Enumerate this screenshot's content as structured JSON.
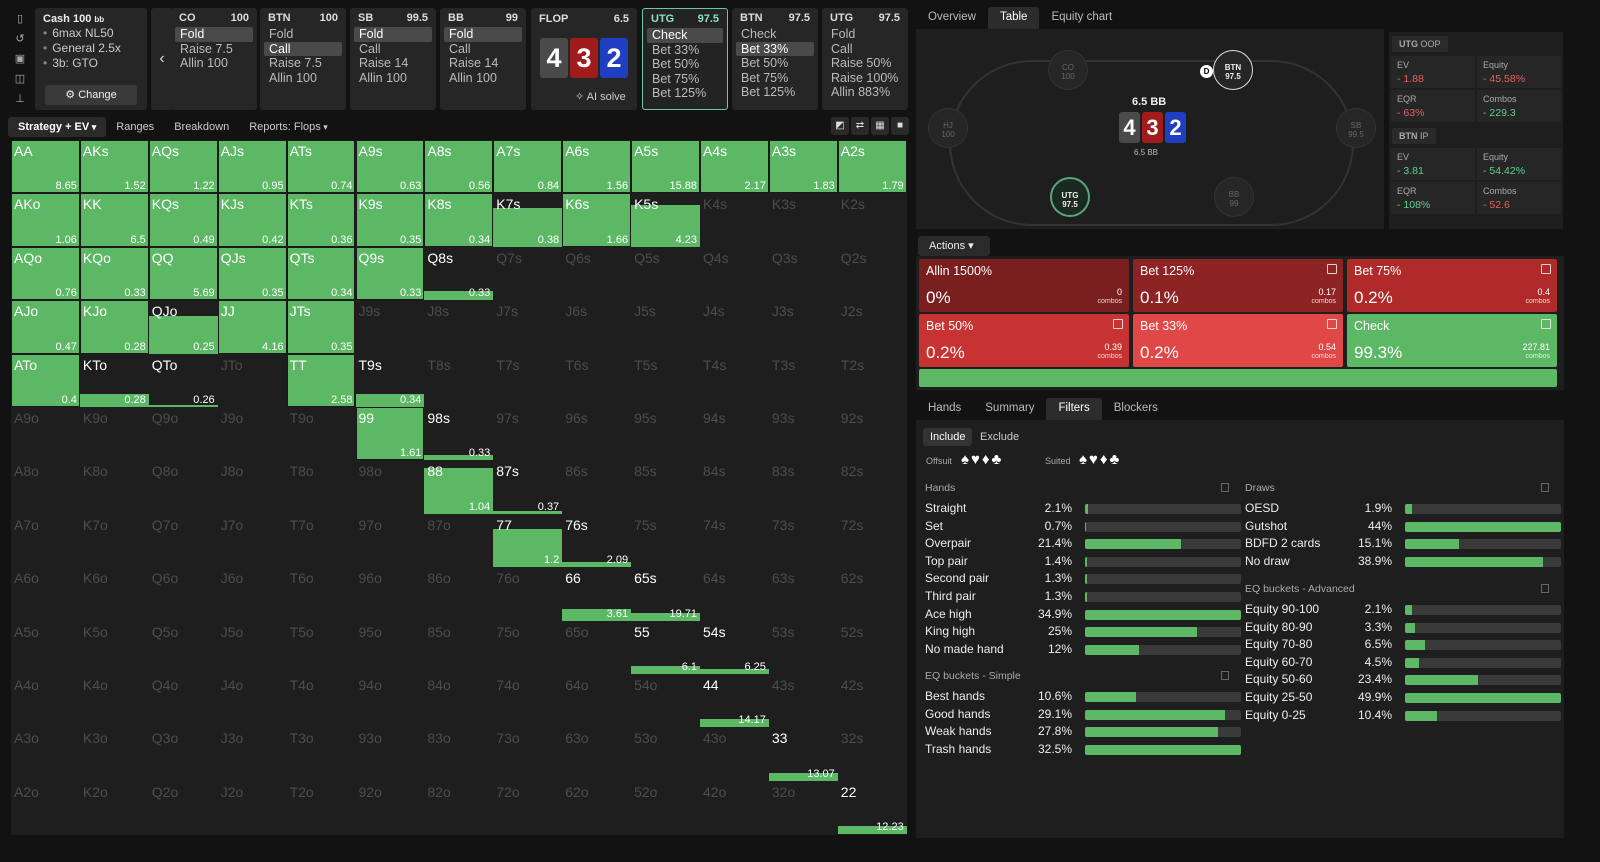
{
  "rail_icons": [
    "bookmark-icon",
    "history-icon",
    "save-icon",
    "gamepad-icon",
    "align-icon"
  ],
  "cash": {
    "title": "Cash 100",
    "unit": "bb",
    "lines": [
      "6max NL50",
      "General 2.5x",
      "3b: GTO"
    ],
    "change_label": "Change"
  },
  "nodes": [
    {
      "pos": "CO",
      "stack": "100",
      "options": [
        "Fold",
        "Raise 7.5",
        "Allin 100"
      ],
      "selected": 0
    },
    {
      "pos": "BTN",
      "stack": "100",
      "options": [
        "Fold",
        "Call",
        "Raise 7.5",
        "Allin 100"
      ],
      "selected": 1
    },
    {
      "pos": "SB",
      "stack": "99.5",
      "options": [
        "Fold",
        "Call",
        "Raise 14",
        "Allin 100"
      ],
      "selected": 0
    },
    {
      "pos": "BB",
      "stack": "99",
      "options": [
        "Fold",
        "Call",
        "Raise 14",
        "Allin 100"
      ],
      "selected": 0
    }
  ],
  "flop": {
    "label": "FLOP",
    "pot": "6.5",
    "cards": [
      {
        "rank": "4",
        "color": "#4a4a4a"
      },
      {
        "rank": "3",
        "color": "#a01c1c"
      },
      {
        "rank": "2",
        "color": "#1f3ec2"
      }
    ],
    "ai_label": "AI solve"
  },
  "nodes2": [
    {
      "pos": "UTG",
      "stack": "97.5",
      "options": [
        "Check",
        "Bet 33%",
        "Bet 50%",
        "Bet 75%",
        "Bet 125%"
      ],
      "selected": 0,
      "active": true
    },
    {
      "pos": "BTN",
      "stack": "97.5",
      "options": [
        "Check",
        "Bet 33%",
        "Bet 50%",
        "Bet 75%",
        "Bet 125%"
      ],
      "selected": 1
    },
    {
      "pos": "UTG",
      "stack": "97.5",
      "options": [
        "Fold",
        "Call",
        "Raise 50%",
        "Raise 100%",
        "Allin 883%"
      ],
      "selected": -1
    }
  ],
  "right_tabs": [
    "Overview",
    "Table",
    "Equity chart"
  ],
  "table": {
    "seats": [
      {
        "name": "CO",
        "stack": "100"
      },
      {
        "name": "BTN",
        "stack": "97.5"
      },
      {
        "name": "HJ",
        "stack": "100"
      },
      {
        "name": "SB",
        "stack": "99.5"
      },
      {
        "name": "UTG",
        "stack": "97.5"
      },
      {
        "name": "BB",
        "stack": "99"
      }
    ],
    "pot": "6.5 BB",
    "pot_small": "6.5 BB",
    "dealer": "D",
    "cards": [
      {
        "rank": "4",
        "color": "#4a4a4a"
      },
      {
        "rank": "3",
        "color": "#a01c1c"
      },
      {
        "rank": "2",
        "color": "#1f3ec2"
      }
    ]
  },
  "stats": [
    {
      "header": "UTG",
      "tag": "OOP",
      "items": [
        {
          "label": "EV",
          "value": "- 1.88",
          "cls": "neg"
        },
        {
          "label": "Equity",
          "value": "- 45.58%",
          "cls": "neg"
        },
        {
          "label": "EQR",
          "value": "- 63%",
          "cls": "neg"
        },
        {
          "label": "Combos",
          "value": "- 229.3",
          "cls": "pos"
        }
      ]
    },
    {
      "header": "BTN",
      "tag": "IP",
      "items": [
        {
          "label": "EV",
          "value": "- 3.81",
          "cls": "pos"
        },
        {
          "label": "Equity",
          "value": "- 54.42%",
          "cls": "pos"
        },
        {
          "label": "EQR",
          "value": "- 108%",
          "cls": "pos"
        },
        {
          "label": "Combos",
          "value": "- 52.6",
          "cls": "neg"
        }
      ]
    }
  ],
  "actions_label": "Actions",
  "actions": [
    {
      "name": "Allin 1500%",
      "pct": "0%",
      "combos": "0",
      "color": "#7a1f1f"
    },
    {
      "name": "Bet 125%",
      "pct": "0.1%",
      "combos": "0.17",
      "color": "#8e2323"
    },
    {
      "name": "Bet 75%",
      "pct": "0.2%",
      "combos": "0.4",
      "color": "#b02a2a"
    },
    {
      "name": "Bet 50%",
      "pct": "0.2%",
      "combos": "0.39",
      "color": "#c73333"
    },
    {
      "name": "Bet 33%",
      "pct": "0.2%",
      "combos": "0.54",
      "color": "#e04848"
    },
    {
      "name": "Check",
      "pct": "99.3%",
      "combos": "227.81",
      "color": "#5cb865"
    }
  ],
  "combos_word": "combos",
  "bottom_tabs": [
    "Hands",
    "Summary",
    "Filters",
    "Blockers"
  ],
  "filters": {
    "include": "Include",
    "exclude": "Exclude",
    "offsuit": "Offsuit",
    "suited": "Suited",
    "suit_glyphs": "♠♥♦♣",
    "suited_glyphs": "♠♥♦♣",
    "hands_title": "Hands",
    "hands": [
      {
        "name": "Straight",
        "pct": "2.1%",
        "v": 0.021
      },
      {
        "name": "Set",
        "pct": "0.7%",
        "v": 0.007
      },
      {
        "name": "Overpair",
        "pct": "21.4%",
        "v": 0.614
      },
      {
        "name": "Top pair",
        "pct": "1.4%",
        "v": 0.014
      },
      {
        "name": "Second pair",
        "pct": "1.3%",
        "v": 0.013
      },
      {
        "name": "Third pair",
        "pct": "1.3%",
        "v": 0.013
      },
      {
        "name": "Ace high",
        "pct": "34.9%",
        "v": 1.0
      },
      {
        "name": "King high",
        "pct": "25%",
        "v": 0.716
      },
      {
        "name": "No made hand",
        "pct": "12%",
        "v": 0.344
      }
    ],
    "eqs_title": "EQ buckets - Simple",
    "eqs": [
      {
        "name": "Best hands",
        "pct": "10.6%",
        "v": 0.326
      },
      {
        "name": "Good hands",
        "pct": "29.1%",
        "v": 0.895
      },
      {
        "name": "Weak hands",
        "pct": "27.8%",
        "v": 0.855
      },
      {
        "name": "Trash hands",
        "pct": "32.5%",
        "v": 1.0
      }
    ],
    "draws_title": "Draws",
    "draws": [
      {
        "name": "OESD",
        "pct": "1.9%",
        "v": 0.043
      },
      {
        "name": "Gutshot",
        "pct": "44%",
        "v": 1.0
      },
      {
        "name": "BDFD 2 cards",
        "pct": "15.1%",
        "v": 0.343
      },
      {
        "name": "No draw",
        "pct": "38.9%",
        "v": 0.884
      }
    ],
    "eqa_title": "EQ buckets - Advanced",
    "eqa": [
      {
        "name": "Equity 90-100",
        "pct": "2.1%",
        "v": 0.042
      },
      {
        "name": "Equity 80-90",
        "pct": "3.3%",
        "v": 0.066
      },
      {
        "name": "Equity 70-80",
        "pct": "6.5%",
        "v": 0.13
      },
      {
        "name": "Equity 60-70",
        "pct": "4.5%",
        "v": 0.09
      },
      {
        "name": "Equity 50-60",
        "pct": "23.4%",
        "v": 0.469
      },
      {
        "name": "Equity 25-50",
        "pct": "49.9%",
        "v": 1.0
      },
      {
        "name": "Equity 0-25",
        "pct": "10.4%",
        "v": 0.208
      }
    ]
  },
  "strategy_tabs": [
    "Strategy + EV",
    "Ranges",
    "Breakdown",
    "Reports: Flops"
  ],
  "view_icons": [
    "contrast-icon",
    "swap-icon",
    "grid-icon",
    "square-icon"
  ],
  "grid": {
    "ranks": [
      "A",
      "K",
      "Q",
      "J",
      "T",
      "9",
      "8",
      "7",
      "6",
      "5",
      "4",
      "3",
      "2"
    ],
    "cells": {
      "AA": {
        "f": 1,
        "ev": "8.65"
      },
      "AKs": {
        "f": 1,
        "ev": "1.52"
      },
      "AQs": {
        "f": 1,
        "ev": "1.22"
      },
      "AJs": {
        "f": 1,
        "ev": "0.95"
      },
      "ATs": {
        "f": 1,
        "ev": "0.74"
      },
      "A9s": {
        "f": 1,
        "ev": "0.63"
      },
      "A8s": {
        "f": 1,
        "ev": "0.56"
      },
      "A7s": {
        "f": 1,
        "ev": "0.84"
      },
      "A6s": {
        "f": 1,
        "ev": "1.56"
      },
      "A5s": {
        "f": 1,
        "ev": "15.88"
      },
      "A4s": {
        "f": 1,
        "ev": "2.17"
      },
      "A3s": {
        "f": 1,
        "ev": "1.83"
      },
      "A2s": {
        "f": 1,
        "ev": "1.79"
      },
      "AKo": {
        "f": 1,
        "ev": "1.06"
      },
      "KK": {
        "f": 1,
        "ev": "6.5"
      },
      "KQs": {
        "f": 1,
        "ev": "0.49"
      },
      "KJs": {
        "f": 1,
        "ev": "0.42"
      },
      "KTs": {
        "f": 1,
        "ev": "0.36"
      },
      "K9s": {
        "f": 1,
        "ev": "0.35"
      },
      "K8s": {
        "f": 1,
        "ev": "0.34"
      },
      "K7s": {
        "f": 0.72,
        "ev": "0.38",
        "p": 1
      },
      "K6s": {
        "f": 1,
        "ev": "1.66"
      },
      "K5s": {
        "f": 0.78,
        "ev": "4.23",
        "p": 1
      },
      "AQo": {
        "f": 1,
        "ev": "0.76"
      },
      "KQo": {
        "f": 1,
        "ev": "0.33"
      },
      "QQ": {
        "f": 1,
        "ev": "5.69"
      },
      "QJs": {
        "f": 1,
        "ev": "0.35"
      },
      "QTs": {
        "f": 1,
        "ev": "0.34"
      },
      "Q9s": {
        "f": 1,
        "ev": "0.33"
      },
      "Q8s": {
        "f": 0.17,
        "ev": "0.33",
        "p": 1
      },
      "AJo": {
        "f": 1,
        "ev": "0.47"
      },
      "KJo": {
        "f": 1,
        "ev": "0.28"
      },
      "QJo": {
        "f": 0.7,
        "ev": "0.25",
        "p": 1
      },
      "JJ": {
        "f": 1,
        "ev": "4.16"
      },
      "JTs": {
        "f": 1,
        "ev": "0.35"
      },
      "ATo": {
        "f": 1,
        "ev": "0.4"
      },
      "KTo": {
        "f": 0.25,
        "ev": "0.28",
        "p": 1
      },
      "QTo": {
        "f": 0.03,
        "ev": "0.26",
        "p": 1
      },
      "TT": {
        "f": 1,
        "ev": "2.58"
      },
      "T9s": {
        "f": 0.25,
        "ev": "0.34",
        "p": 1
      },
      "99": {
        "f": 1,
        "ev": "1.61"
      },
      "98s": {
        "f": 0.1,
        "ev": "0.33",
        "p": 1
      },
      "88": {
        "f": 0.85,
        "ev": "1.04",
        "p": 1
      },
      "87s": {
        "f": 0.05,
        "ev": "0.37",
        "p": 1
      },
      "77": {
        "f": 0.72,
        "ev": "1.2",
        "p": 1
      },
      "76s": {
        "f": 0.1,
        "ev": "2.09",
        "p": 1
      },
      "66": {
        "f": 0.22,
        "ev": "3.61",
        "p": 1
      },
      "65s": {
        "f": 0.15,
        "ev": "19.71",
        "p": 1
      },
      "55": {
        "f": 0.15,
        "ev": "6.1",
        "p": 1
      },
      "54s": {
        "f": 0.1,
        "ev": "6.25",
        "p": 1
      },
      "44": {
        "f": 0.15,
        "ev": "14.17",
        "p": 1
      },
      "33": {
        "f": 0.15,
        "ev": "13.07",
        "p": 1
      },
      "22": {
        "f": 0.15,
        "ev": "12.23",
        "p": 1
      }
    }
  }
}
